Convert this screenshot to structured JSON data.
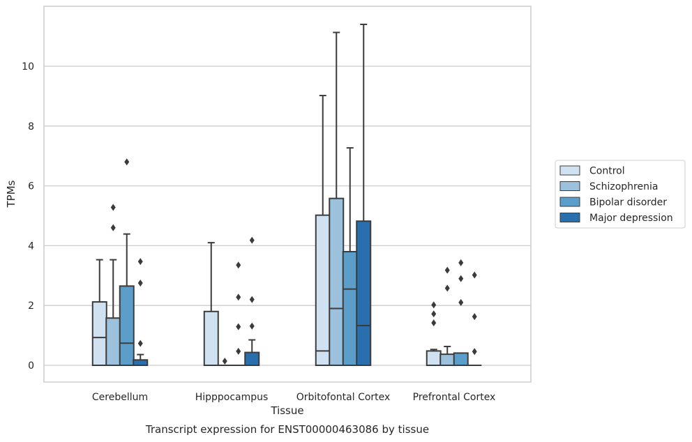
{
  "chart_data": {
    "type": "box",
    "caption": "Transcript expression for ENST00000463086 by tissue",
    "xlabel": "Tissue",
    "ylabel": "TPMs",
    "ylim": [
      -0.55,
      12.0
    ],
    "yticks": [
      0,
      2,
      4,
      6,
      8,
      10
    ],
    "grid": "horizontal",
    "legend_position": "right",
    "categories": [
      "Cerebellum",
      "Hipppocampus",
      "Orbitofontal Cortex",
      "Prefrontal Cortex"
    ],
    "series": [
      {
        "name": "Control",
        "color": "#d0e1f2",
        "boxes": [
          {
            "whislo": 0,
            "q1": 0,
            "med": 0.93,
            "q3": 2.12,
            "whishi": 3.53,
            "fliers": []
          },
          {
            "whislo": 0,
            "q1": 0,
            "med": 0,
            "q3": 1.8,
            "whishi": 4.1,
            "fliers": []
          },
          {
            "whislo": 0,
            "q1": 0,
            "med": 0.48,
            "q3": 5.02,
            "whishi": 9.02,
            "fliers": []
          },
          {
            "whislo": 0,
            "q1": 0,
            "med": 0,
            "q3": 0.48,
            "whishi": 0.53,
            "fliers": [
              1.42,
              1.72,
              2.02
            ]
          }
        ]
      },
      {
        "name": "Schizophrenia",
        "color": "#9bc1dc",
        "boxes": [
          {
            "whislo": 0,
            "q1": 0,
            "med": 0,
            "q3": 1.58,
            "whishi": 3.53,
            "fliers": [
              4.6,
              5.28
            ]
          },
          {
            "whislo": 0,
            "q1": 0,
            "med": 0,
            "q3": 0,
            "whishi": 0,
            "fliers": [
              0.14
            ]
          },
          {
            "whislo": 0,
            "q1": 0,
            "med": 1.9,
            "q3": 5.58,
            "whishi": 11.13,
            "fliers": []
          },
          {
            "whislo": 0,
            "q1": 0,
            "med": 0,
            "q3": 0.37,
            "whishi": 0.63,
            "fliers": [
              2.58,
              3.18
            ]
          }
        ]
      },
      {
        "name": "Bipolar disorder",
        "color": "#5b9ec9",
        "boxes": [
          {
            "whislo": 0,
            "q1": 0,
            "med": 0.74,
            "q3": 2.65,
            "whishi": 4.39,
            "fliers": [
              6.8
            ]
          },
          {
            "whislo": 0,
            "q1": 0,
            "med": 0,
            "q3": 0,
            "whishi": 0,
            "fliers": [
              0.47,
              1.29,
              2.28,
              3.35
            ]
          },
          {
            "whislo": 0,
            "q1": 0,
            "med": 2.55,
            "q3": 3.8,
            "whishi": 7.27,
            "fliers": []
          },
          {
            "whislo": 0,
            "q1": 0,
            "med": 0,
            "q3": 0.41,
            "whishi": 0.41,
            "fliers": [
              2.1,
              2.9,
              3.43
            ]
          }
        ]
      },
      {
        "name": "Major depression",
        "color": "#2a6fad",
        "boxes": [
          {
            "whislo": 0,
            "q1": 0,
            "med": 0,
            "q3": 0.18,
            "whishi": 0.36,
            "fliers": [
              0.73,
              2.75,
              3.47
            ]
          },
          {
            "whislo": 0,
            "q1": 0,
            "med": 0,
            "q3": 0.43,
            "whishi": 0.85,
            "fliers": [
              1.31,
              2.2,
              4.18
            ]
          },
          {
            "whislo": 0,
            "q1": 0,
            "med": 1.33,
            "q3": 4.82,
            "whishi": 11.4,
            "fliers": []
          },
          {
            "whislo": 0,
            "q1": 0,
            "med": 0,
            "q3": 0,
            "whishi": 0,
            "fliers": [
              0.46,
              1.63,
              3.02
            ]
          }
        ]
      }
    ]
  }
}
